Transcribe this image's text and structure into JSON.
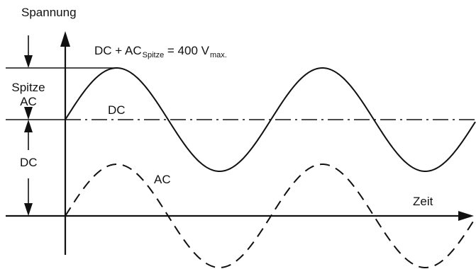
{
  "labels": {
    "y_axis": "Spannung",
    "x_axis": "Zeit",
    "spitze_line1": "Spitze",
    "spitze_line2": "AC",
    "dc_side": "DC",
    "dc_curve": "DC",
    "ac_curve": "AC",
    "formula": {
      "part1": "DC + AC",
      "sub1": "Spitze",
      "part2": " = 400 V",
      "sub2": "max."
    }
  },
  "colors": {
    "ink": "#111111",
    "background": "#ffffff"
  },
  "line_styles": {
    "sum_curve": "solid",
    "ac_curve": "dashed",
    "dc_level": "dash-dot"
  }
}
